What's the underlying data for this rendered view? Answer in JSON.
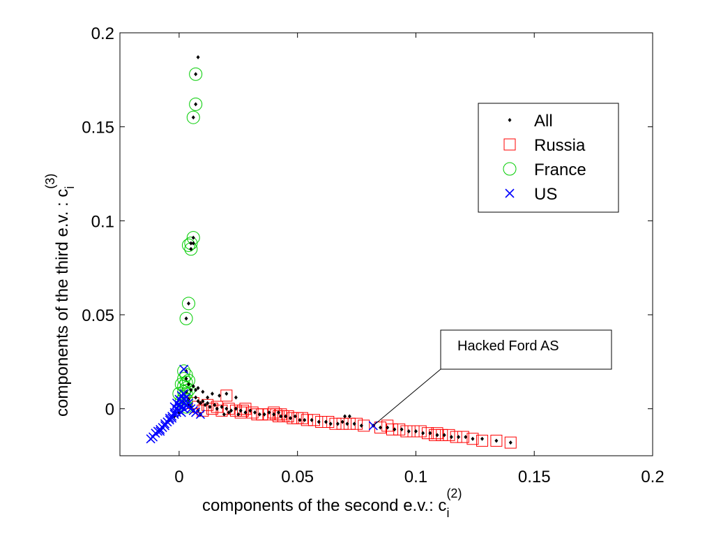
{
  "chart_data": {
    "type": "scatter",
    "xlabel_main": "components of the second e.v.: c",
    "xlabel_sup": "(2)",
    "xlabel_sub": "i",
    "ylabel_main": "components of the third e.v. : c",
    "ylabel_sup": "(3)",
    "ylabel_sub": "i",
    "xlim": [
      -0.025,
      0.2
    ],
    "ylim": [
      -0.025,
      0.2
    ],
    "xticks": [
      0,
      0.05,
      0.1,
      0.15,
      0.2
    ],
    "xtick_labels": [
      "0",
      "0.05",
      "0.1",
      "0.15",
      "0.2"
    ],
    "yticks": [
      0,
      0.05,
      0.1,
      0.15,
      0.2
    ],
    "ytick_labels": [
      "0",
      "0.05",
      "0.1",
      "0.15",
      "0.2"
    ],
    "grid": false,
    "legend_position": "top-right",
    "colors": {
      "all": "#000000",
      "russia": "#ff0000",
      "france": "#00cc00",
      "us": "#0000ff"
    },
    "annotation": {
      "text": "Hacked Ford AS",
      "x": 0.082,
      "y": -0.009
    },
    "series": [
      {
        "name": "All",
        "marker": "dot",
        "points": [
          [
            0.008,
            0.187
          ],
          [
            0.007,
            0.178
          ],
          [
            0.007,
            0.162
          ],
          [
            0.006,
            0.155
          ],
          [
            0.006,
            0.091
          ],
          [
            0.006,
            0.088
          ],
          [
            0.005,
            0.088
          ],
          [
            0.005,
            0.085
          ],
          [
            0.004,
            0.056
          ],
          [
            0.003,
            0.048
          ],
          [
            0.003,
            0.02
          ],
          [
            0.003,
            0.016
          ],
          [
            0.004,
            0.013
          ],
          [
            0.003,
            0.009
          ],
          [
            0.004,
            0.005
          ],
          [
            0.005,
            0.01
          ],
          [
            0.006,
            0.012
          ],
          [
            0.007,
            0.01
          ],
          [
            0.008,
            0.011
          ],
          [
            0.01,
            0.009
          ],
          [
            0.012,
            0.006
          ],
          [
            0.014,
            0.008
          ],
          [
            0.017,
            0.007
          ],
          [
            0.02,
            0.008
          ],
          [
            0.024,
            0.006
          ],
          [
            0.007,
            0.006
          ],
          [
            0.008,
            0.004
          ],
          [
            0.009,
            0.003
          ],
          [
            0.01,
            0.004
          ],
          [
            0.011,
            0.002
          ],
          [
            0.012,
            0.003
          ],
          [
            0.013,
            0.001
          ],
          [
            0.015,
            0.002
          ],
          [
            0.016,
            0.0
          ],
          [
            0.018,
            0.001
          ],
          [
            0.02,
            0.0
          ],
          [
            0.022,
            -0.001
          ],
          [
            0.024,
            0.0
          ],
          [
            0.026,
            -0.001
          ],
          [
            0.028,
            -0.002
          ],
          [
            0.03,
            -0.001
          ],
          [
            0.032,
            -0.002
          ],
          [
            0.034,
            -0.003
          ],
          [
            0.036,
            -0.003
          ],
          [
            0.038,
            -0.002
          ],
          [
            0.04,
            -0.003
          ],
          [
            0.042,
            -0.002
          ],
          [
            0.043,
            -0.004
          ],
          [
            0.045,
            -0.004
          ],
          [
            0.047,
            -0.005
          ],
          [
            0.049,
            -0.004
          ],
          [
            0.051,
            -0.006
          ],
          [
            0.053,
            -0.006
          ],
          [
            0.056,
            -0.006
          ],
          [
            0.059,
            -0.007
          ],
          [
            0.062,
            -0.007
          ],
          [
            0.064,
            -0.008
          ],
          [
            0.067,
            -0.008
          ],
          [
            0.069,
            -0.007
          ],
          [
            0.07,
            -0.004
          ],
          [
            0.072,
            -0.004
          ],
          [
            0.071,
            -0.008
          ],
          [
            0.074,
            -0.008
          ],
          [
            0.077,
            -0.009
          ],
          [
            0.082,
            -0.009
          ],
          [
            0.085,
            -0.01
          ],
          [
            0.088,
            -0.01
          ],
          [
            0.091,
            -0.011
          ],
          [
            0.094,
            -0.011
          ],
          [
            0.097,
            -0.012
          ],
          [
            0.1,
            -0.012
          ],
          [
            0.103,
            -0.013
          ],
          [
            0.106,
            -0.013
          ],
          [
            0.109,
            -0.014
          ],
          [
            0.112,
            -0.014
          ],
          [
            0.115,
            -0.015
          ],
          [
            0.118,
            -0.015
          ],
          [
            0.121,
            -0.015
          ],
          [
            0.124,
            -0.016
          ],
          [
            0.128,
            -0.016
          ],
          [
            0.134,
            -0.017
          ],
          [
            0.14,
            -0.018
          ],
          [
            0.002,
            0.003
          ],
          [
            0.001,
            0.001
          ],
          [
            0.0,
            -0.002
          ],
          [
            -0.002,
            -0.004
          ],
          [
            -0.004,
            -0.006
          ],
          [
            0.004,
            0.002
          ],
          [
            0.005,
            0.001
          ],
          [
            0.006,
            -0.001
          ],
          [
            0.008,
            -0.001
          ],
          [
            0.009,
            -0.003
          ],
          [
            0.019,
            -0.003
          ],
          [
            0.021,
            -0.002
          ],
          [
            0.025,
            -0.003
          ]
        ]
      },
      {
        "name": "Russia",
        "marker": "square",
        "points": [
          [
            0.006,
            0.003
          ],
          [
            0.008,
            0.001
          ],
          [
            0.01,
            -0.001
          ],
          [
            0.012,
            0.002
          ],
          [
            0.014,
            0.0
          ],
          [
            0.016,
            0.001
          ],
          [
            0.018,
            -0.001
          ],
          [
            0.02,
            0.007
          ],
          [
            0.021,
            0.0
          ],
          [
            0.024,
            -0.001
          ],
          [
            0.026,
            -0.002
          ],
          [
            0.027,
            -0.001
          ],
          [
            0.028,
            0.0
          ],
          [
            0.031,
            -0.002
          ],
          [
            0.033,
            -0.003
          ],
          [
            0.035,
            -0.003
          ],
          [
            0.038,
            -0.003
          ],
          [
            0.04,
            -0.002
          ],
          [
            0.041,
            -0.003
          ],
          [
            0.042,
            -0.004
          ],
          [
            0.043,
            -0.003
          ],
          [
            0.044,
            -0.004
          ],
          [
            0.046,
            -0.004
          ],
          [
            0.048,
            -0.005
          ],
          [
            0.05,
            -0.005
          ],
          [
            0.052,
            -0.005
          ],
          [
            0.054,
            -0.006
          ],
          [
            0.057,
            -0.006
          ],
          [
            0.06,
            -0.007
          ],
          [
            0.063,
            -0.007
          ],
          [
            0.066,
            -0.008
          ],
          [
            0.069,
            -0.008
          ],
          [
            0.072,
            -0.008
          ],
          [
            0.075,
            -0.008
          ],
          [
            0.078,
            -0.009
          ],
          [
            0.085,
            -0.01
          ],
          [
            0.088,
            -0.009
          ],
          [
            0.09,
            -0.011
          ],
          [
            0.093,
            -0.011
          ],
          [
            0.096,
            -0.012
          ],
          [
            0.099,
            -0.012
          ],
          [
            0.102,
            -0.012
          ],
          [
            0.105,
            -0.013
          ],
          [
            0.108,
            -0.014
          ],
          [
            0.111,
            -0.014
          ],
          [
            0.114,
            -0.014
          ],
          [
            0.117,
            -0.015
          ],
          [
            0.12,
            -0.015
          ],
          [
            0.124,
            -0.016
          ],
          [
            0.128,
            -0.017
          ],
          [
            0.134,
            -0.017
          ],
          [
            0.14,
            -0.018
          ],
          [
            0.109,
            -0.013
          ]
        ]
      },
      {
        "name": "France",
        "marker": "circle",
        "points": [
          [
            0.007,
            0.178
          ],
          [
            0.007,
            0.162
          ],
          [
            0.006,
            0.155
          ],
          [
            0.006,
            0.091
          ],
          [
            0.005,
            0.088
          ],
          [
            0.004,
            0.087
          ],
          [
            0.005,
            0.085
          ],
          [
            0.004,
            0.056
          ],
          [
            0.003,
            0.048
          ],
          [
            0.002,
            0.02
          ],
          [
            0.003,
            0.018
          ],
          [
            0.002,
            0.016
          ],
          [
            0.003,
            0.014
          ],
          [
            0.002,
            0.012
          ],
          [
            0.003,
            0.011
          ],
          [
            0.002,
            0.009
          ],
          [
            0.003,
            0.008
          ],
          [
            0.002,
            0.006
          ],
          [
            0.003,
            0.005
          ],
          [
            0.001,
            0.013
          ],
          [
            0.004,
            0.015
          ],
          [
            0.004,
            0.01
          ],
          [
            0.002,
            0.003
          ],
          [
            0.003,
            0.001
          ],
          [
            0.0,
            0.008
          ],
          [
            0.001,
            0.004
          ]
        ]
      },
      {
        "name": "US",
        "marker": "x",
        "points": [
          [
            0.002,
            0.021
          ],
          [
            0.082,
            -0.009
          ],
          [
            0.009,
            -0.003
          ],
          [
            0.002,
            0.005
          ],
          [
            0.001,
            0.004
          ],
          [
            0.002,
            0.003
          ],
          [
            0.0,
            0.002
          ],
          [
            0.001,
            0.001
          ],
          [
            -0.001,
            0.0
          ],
          [
            0.0,
            -0.001
          ],
          [
            -0.002,
            -0.002
          ],
          [
            -0.001,
            -0.002
          ],
          [
            -0.003,
            -0.004
          ],
          [
            -0.002,
            -0.003
          ],
          [
            -0.004,
            -0.005
          ],
          [
            -0.003,
            -0.005
          ],
          [
            -0.005,
            -0.007
          ],
          [
            -0.004,
            -0.006
          ],
          [
            -0.006,
            -0.008
          ],
          [
            -0.007,
            -0.01
          ],
          [
            -0.006,
            -0.009
          ],
          [
            -0.008,
            -0.011
          ],
          [
            -0.009,
            -0.012
          ],
          [
            -0.008,
            -0.012
          ],
          [
            -0.01,
            -0.013
          ],
          [
            -0.011,
            -0.015
          ],
          [
            -0.012,
            -0.016
          ],
          [
            0.003,
            0.002
          ],
          [
            0.004,
            0.001
          ],
          [
            0.005,
            0.0
          ],
          [
            0.006,
            -0.001
          ],
          [
            0.001,
            0.007
          ],
          [
            0.002,
            0.008
          ],
          [
            0.003,
            0.006
          ],
          [
            0.0,
            0.005
          ],
          [
            -0.001,
            0.003
          ],
          [
            0.004,
            0.003
          ],
          [
            0.002,
            0.0
          ],
          [
            0.001,
            -0.002
          ],
          [
            -0.002,
            0.001
          ],
          [
            0.007,
            -0.002
          ]
        ]
      }
    ]
  }
}
